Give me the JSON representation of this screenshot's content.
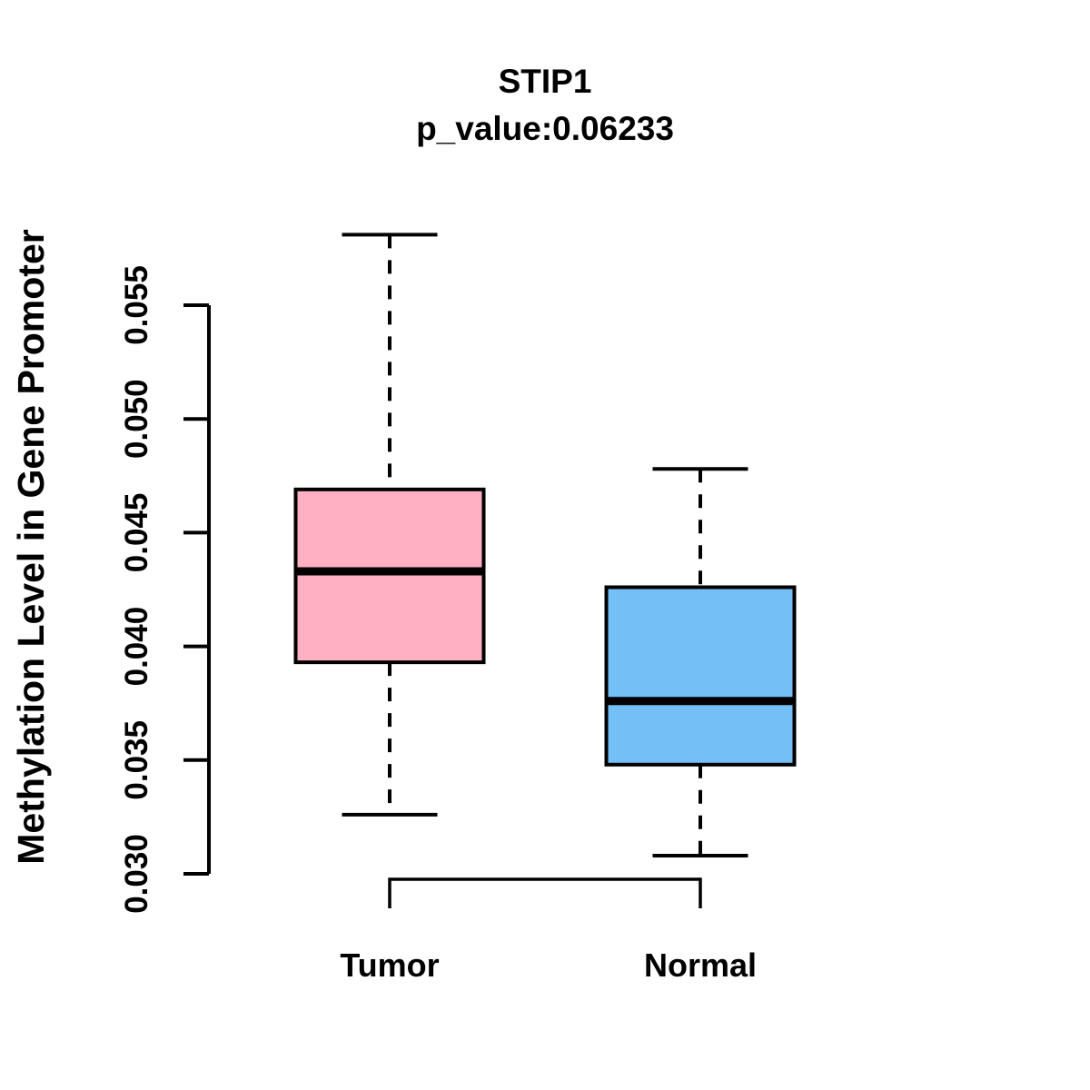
{
  "chart_data": {
    "type": "boxplot",
    "title": "STIP1",
    "subtitle": "p_value:0.06233",
    "gene": "STIP1",
    "p_value": 0.06233,
    "ylabel": "Methylation Level in Gene Promoter",
    "xlabel": "",
    "categories": [
      "Tumor",
      "Normal"
    ],
    "yticks": [
      0.03,
      0.035,
      0.04,
      0.045,
      0.05,
      0.055
    ],
    "ytick_labels": [
      "0.030",
      "0.035",
      "0.040",
      "0.045",
      "0.050",
      "0.055"
    ],
    "ylim": [
      0.0295,
      0.0585
    ],
    "grid": false,
    "legend": "none",
    "whisker_style": "dashed",
    "stroke_color": "#000000",
    "background_color": "#FFFFFF",
    "series": [
      {
        "name": "Tumor",
        "fill_color": "#FFB0C3",
        "whisker_low": 0.0326,
        "q1": 0.0393,
        "median": 0.0433,
        "q3": 0.0469,
        "whisker_high": 0.0581
      },
      {
        "name": "Normal",
        "fill_color": "#75BFF7",
        "whisker_low": 0.0308,
        "q1": 0.0348,
        "median": 0.0376,
        "q3": 0.0426,
        "whisker_high": 0.0478
      }
    ]
  }
}
